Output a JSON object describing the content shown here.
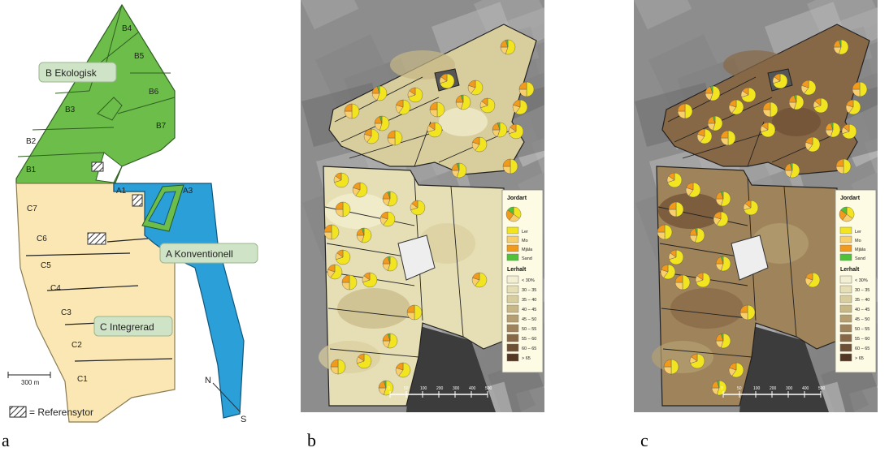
{
  "panel_a": {
    "letter": "a",
    "areas": [
      {
        "label": "B  Ekologisk",
        "color": "#6dbd4a"
      },
      {
        "label": "A  Konventionell",
        "color": "#2a9fd8"
      },
      {
        "label": "C  Integrerad",
        "color": "#fbe7b3"
      }
    ],
    "plots": [
      "B1",
      "B2",
      "B3",
      "B4",
      "B5",
      "B6",
      "B7",
      "A1",
      "A3",
      "C1",
      "C2",
      "C3",
      "C4",
      "C5",
      "C6",
      "C7"
    ],
    "scale_label": "300 m",
    "compass": {
      "n": "N",
      "s": "S"
    },
    "reference_label": "= Referensytor"
  },
  "panel_b": {
    "letter": "b",
    "lerhalt_shading": "light"
  },
  "panel_c": {
    "letter": "c",
    "lerhalt_shading": "dark"
  },
  "legend": {
    "title": "Jordart",
    "soil_types": [
      {
        "label": "Ler",
        "color": "#f2e520"
      },
      {
        "label": "Mo",
        "color": "#f9cf6b"
      },
      {
        "label": "Mjäla",
        "color": "#f29a1c"
      },
      {
        "label": "Sand",
        "color": "#4fc23a"
      }
    ],
    "lerhalt_title": "Lerhalt",
    "lerhalt_classes": [
      {
        "label": "< 30%",
        "color": "#f3efd2"
      },
      {
        "label": "30 – 35",
        "color": "#e6dfb5"
      },
      {
        "label": "35 – 40",
        "color": "#d8cd9c"
      },
      {
        "label": "40 – 45",
        "color": "#c8b886"
      },
      {
        "label": "45 – 50",
        "color": "#b59f70"
      },
      {
        "label": "50 – 55",
        "color": "#9f835a"
      },
      {
        "label": "55 – 60",
        "color": "#876846"
      },
      {
        "label": "60 – 65",
        "color": "#6d4f33"
      },
      {
        "label": "> 65",
        "color": "#533723"
      }
    ],
    "scale_ticks": [
      "0",
      "50",
      "100",
      "200",
      "300",
      "400",
      "500"
    ]
  }
}
